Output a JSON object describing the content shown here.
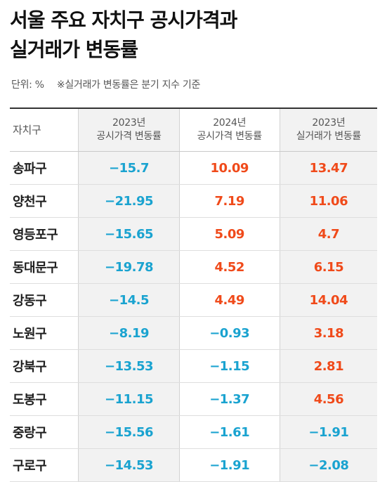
{
  "title": [
    "서울 주요 자치구 공시가격과",
    "실거래가 변동률"
  ],
  "unit_note": "단위: %",
  "sub_note": "※실거래가 변동률은 분기 지수 기준",
  "colors": {
    "negative": "#1aa3d0",
    "positive": "#f04a1a",
    "shade": "#f2f2f2"
  },
  "chart_data": {
    "type": "table",
    "columns": [
      {
        "key": "district",
        "label": [
          "자치구"
        ]
      },
      {
        "key": "c2023",
        "label": [
          "2023년",
          "공시가격 변동률"
        ]
      },
      {
        "key": "c2024",
        "label": [
          "2024년",
          "공시가격 변동률"
        ]
      },
      {
        "key": "r2023",
        "label": [
          "2023년",
          "실거래가 변동률"
        ]
      }
    ],
    "rows": [
      [
        "송파구",
        "−15.7",
        "10.09",
        "13.47"
      ],
      [
        "양천구",
        "−21.95",
        "7.19",
        "11.06"
      ],
      [
        "영등포구",
        "−15.65",
        "5.09",
        "4.7"
      ],
      [
        "동대문구",
        "−19.78",
        "4.52",
        "6.15"
      ],
      [
        "강동구",
        "−14.5",
        "4.49",
        "14.04"
      ],
      [
        "노원구",
        "−8.19",
        "−0.93",
        "3.18"
      ],
      [
        "강북구",
        "−13.53",
        "−1.15",
        "2.81"
      ],
      [
        "도봉구",
        "−11.15",
        "−1.37",
        "4.56"
      ],
      [
        "중랑구",
        "−15.56",
        "−1.61",
        "−1.91"
      ],
      [
        "구로구",
        "−14.53",
        "−1.91",
        "−2.08"
      ]
    ]
  }
}
